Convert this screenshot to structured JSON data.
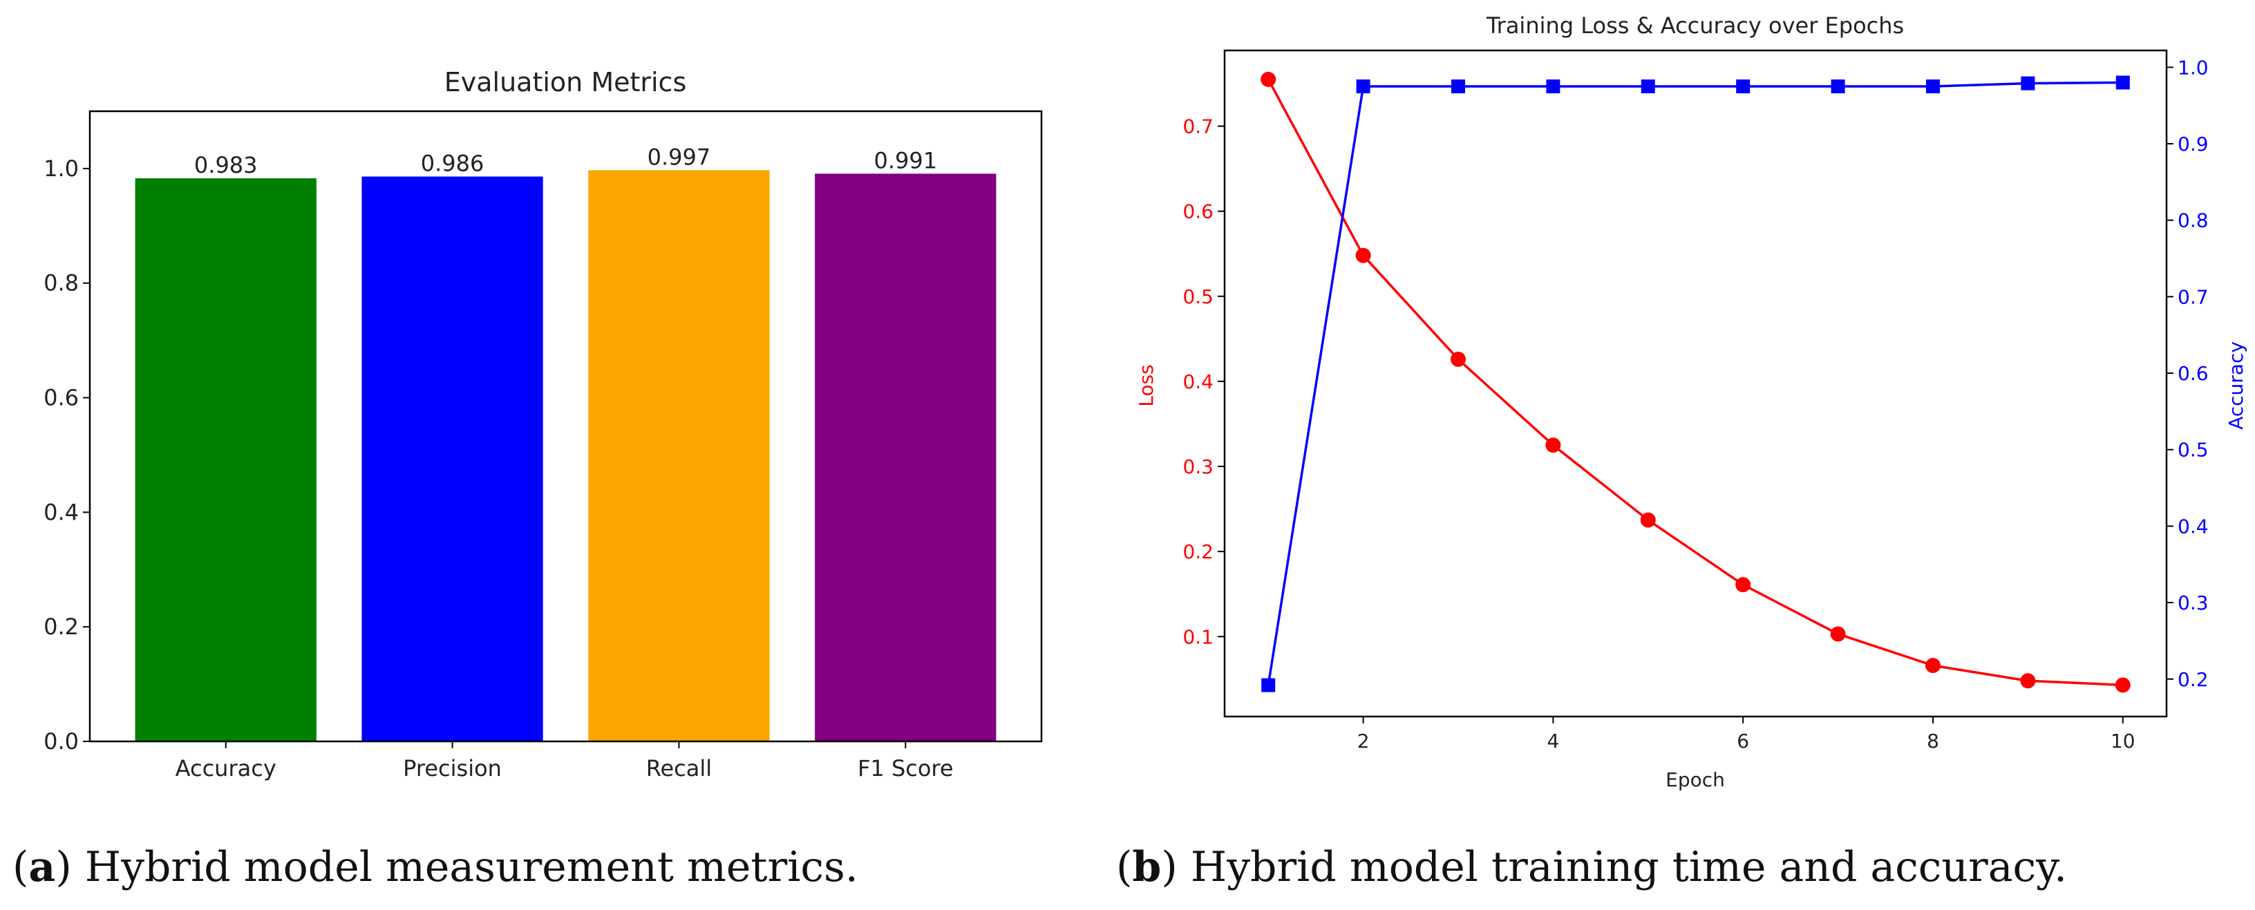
{
  "chart_data": [
    {
      "type": "bar",
      "title": "Evaluation Metrics",
      "categories": [
        "Accuracy",
        "Precision",
        "Recall",
        "F1 Score"
      ],
      "values": [
        0.983,
        0.986,
        0.997,
        0.991
      ],
      "value_labels": [
        "0.983",
        "0.986",
        "0.997",
        "0.991"
      ],
      "colors": [
        "#008000",
        "#0000ff",
        "#ffa500",
        "#800080"
      ],
      "xlabel": "",
      "ylabel": "",
      "ylim": [
        0,
        1.1
      ],
      "yticks": [
        0.0,
        0.2,
        0.4,
        0.6,
        0.8,
        1.0
      ],
      "ytick_labels": [
        "0.0",
        "0.2",
        "0.4",
        "0.6",
        "0.8",
        "1.0"
      ],
      "grid": false
    },
    {
      "type": "line",
      "title": "Training Loss & Accuracy over Epochs",
      "x": [
        1,
        2,
        3,
        4,
        5,
        6,
        7,
        8,
        9,
        10
      ],
      "xlabel": "Epoch",
      "xlim": [
        0.54,
        10.46
      ],
      "xticks": [
        2,
        4,
        6,
        8,
        10
      ],
      "xtick_labels": [
        "2",
        "4",
        "6",
        "8",
        "10"
      ],
      "series": [
        {
          "name": "Loss",
          "axis": "left",
          "color": "#ff0000",
          "marker": "circle",
          "values": [
            0.755,
            0.548,
            0.426,
            0.325,
            0.237,
            0.161,
            0.103,
            0.066,
            0.048,
            0.043
          ]
        },
        {
          "name": "Accuracy",
          "axis": "right",
          "color": "#0000ff",
          "marker": "square",
          "values": [
            0.192,
            0.975,
            0.975,
            0.975,
            0.975,
            0.975,
            0.975,
            0.975,
            0.979,
            0.98
          ]
        }
      ],
      "ylabel_left": "Loss",
      "ylim_left": [
        0.006,
        0.789
      ],
      "yticks_left": [
        0.1,
        0.2,
        0.3,
        0.4,
        0.5,
        0.6,
        0.7
      ],
      "ytick_labels_left": [
        "0.1",
        "0.2",
        "0.3",
        "0.4",
        "0.5",
        "0.6",
        "0.7"
      ],
      "ylabel_right": "Accuracy",
      "ylim_right": [
        0.151,
        1.022
      ],
      "yticks_right": [
        0.2,
        0.3,
        0.4,
        0.5,
        0.6,
        0.7,
        0.8,
        0.9,
        1.0
      ],
      "ytick_labels_right": [
        "0.2",
        "0.3",
        "0.4",
        "0.5",
        "0.6",
        "0.7",
        "0.8",
        "0.9",
        "1.0"
      ],
      "grid": false
    }
  ],
  "captions": {
    "a_label": "a",
    "a_text": " Hybrid model measurement metrics.",
    "b_label": "b",
    "b_text": " Hybrid model training time and accuracy."
  }
}
